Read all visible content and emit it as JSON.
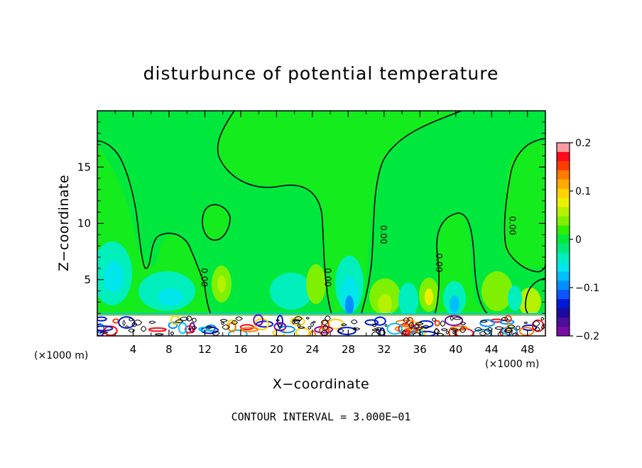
{
  "chart_data": {
    "type": "heatmap",
    "title": "disturbunce of potential temperature",
    "xlabel": "X−coordinate",
    "ylabel": "Z−coordinate",
    "x_unit_left": "(×1000 m)",
    "x_unit_right": "(×1000 m)",
    "xlim": [
      0,
      50
    ],
    "ylim": [
      0,
      20
    ],
    "x_ticks": [
      4,
      8,
      12,
      16,
      20,
      24,
      28,
      32,
      36,
      40,
      44,
      48
    ],
    "y_ticks": [
      5,
      10,
      15
    ],
    "colorbar": {
      "range": [
        -0.2,
        0.2
      ],
      "ticks": [
        {
          "value": 0.2,
          "label": "0.2"
        },
        {
          "value": 0.1,
          "label": "0.1"
        },
        {
          "value": 0,
          "label": "0"
        },
        {
          "value": -0.1,
          "label": "−0.1"
        },
        {
          "value": -0.2,
          "label": "−0.2"
        }
      ],
      "levels": [
        {
          "value": -0.2,
          "color": "#7a0aa8"
        },
        {
          "value": -0.18,
          "color": "#4b0f9a"
        },
        {
          "value": -0.16,
          "color": "#1a0aa0"
        },
        {
          "value": -0.14,
          "color": "#0019d8"
        },
        {
          "value": -0.12,
          "color": "#0a55ff"
        },
        {
          "value": -0.1,
          "color": "#008fff"
        },
        {
          "value": -0.08,
          "color": "#00bfff"
        },
        {
          "value": -0.06,
          "color": "#00e6ec"
        },
        {
          "value": -0.04,
          "color": "#00efbd"
        },
        {
          "value": -0.02,
          "color": "#00ea7c"
        },
        {
          "value": 0,
          "color": "#00ea3c"
        },
        {
          "value": 0.02,
          "color": "#2cf000"
        },
        {
          "value": 0.04,
          "color": "#7ff000"
        },
        {
          "value": 0.06,
          "color": "#b4f200"
        },
        {
          "value": 0.08,
          "color": "#ecf000"
        },
        {
          "value": 0.1,
          "color": "#ffd200"
        },
        {
          "value": 0.12,
          "color": "#ffaa00"
        },
        {
          "value": 0.14,
          "color": "#ff7b00"
        },
        {
          "value": 0.16,
          "color": "#ff3c00"
        },
        {
          "value": 0.18,
          "color": "#ff0a1a"
        },
        {
          "value": 0.2,
          "color": "#ff9aa2"
        }
      ]
    },
    "contour_labels": [
      {
        "x": 11.6,
        "y": 5.2,
        "label": "0.00"
      },
      {
        "x": 25.4,
        "y": 5.2,
        "label": "0.00"
      },
      {
        "x": 31.6,
        "y": 9.0,
        "label": "0.00"
      },
      {
        "x": 37.8,
        "y": 6.5,
        "label": "0.00"
      },
      {
        "x": 46.0,
        "y": 9.8,
        "label": "0.00"
      }
    ],
    "contour_interval_text": "CONTOUR INTERVAL = 3.000E−01"
  }
}
